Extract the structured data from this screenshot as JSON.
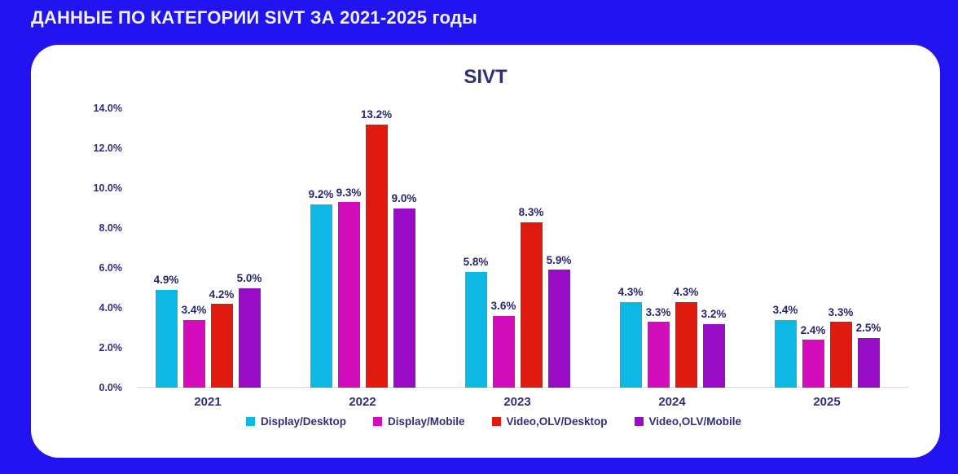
{
  "page": {
    "title": "ДАННЫЕ ПО КАТЕГОРИИ SIVT ЗА 2021-2025 годы",
    "background_color": "#2214f0",
    "card_color": "#ffffff",
    "text_color": "#2e2e7d"
  },
  "chart_data": {
    "type": "bar",
    "title": "SIVT",
    "categories": [
      "2021",
      "2022",
      "2023",
      "2024",
      "2025"
    ],
    "series": [
      {
        "name": "Display/Desktop",
        "color": "#0eb8e4",
        "values": [
          4.9,
          9.2,
          5.8,
          4.3,
          3.4
        ]
      },
      {
        "name": "Display/Mobile",
        "color": "#d30dbb",
        "values": [
          3.4,
          9.3,
          3.6,
          3.3,
          2.4
        ]
      },
      {
        "name": "Video,OLV/Desktop",
        "color": "#de1b0e",
        "values": [
          4.2,
          13.2,
          8.3,
          4.3,
          3.3
        ]
      },
      {
        "name": "Video,OLV/Mobile",
        "color": "#990cc6",
        "values": [
          5.0,
          9.0,
          5.9,
          3.2,
          2.5
        ]
      }
    ],
    "ylim": [
      0,
      14
    ],
    "ytick_step": 2,
    "ytick_labels": [
      "0.0%",
      "2.0%",
      "4.0%",
      "6.0%",
      "8.0%",
      "10.0%",
      "12.0%",
      "14.0%"
    ],
    "data_label_format": "percent1",
    "grid": false,
    "legend_position": "bottom"
  }
}
